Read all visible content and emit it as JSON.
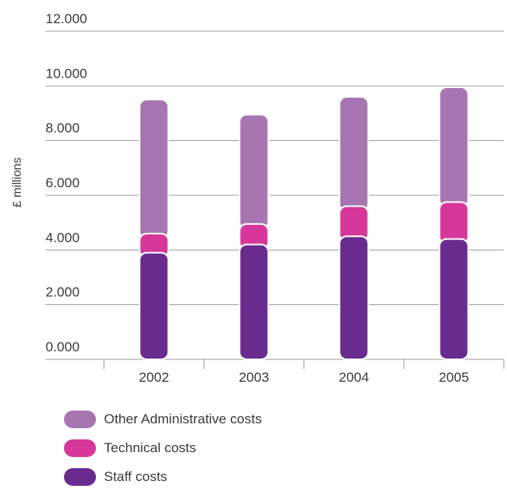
{
  "chart_data": {
    "type": "bar",
    "stacked": true,
    "categories": [
      "2002",
      "2003",
      "2004",
      "2005"
    ],
    "ylabel": "£ millions",
    "ylim": [
      0,
      12
    ],
    "yticks": [
      "0.000",
      "2.000",
      "4.000",
      "6.000",
      "8.000",
      "10.000",
      "12.000"
    ],
    "grid": true,
    "legend_position": "bottom-left",
    "series": [
      {
        "name": "Staff costs",
        "color": "#6a2b8f",
        "values": [
          3.9,
          4.2,
          4.5,
          4.4
        ]
      },
      {
        "name": "Technical costs",
        "color": "#d7379a",
        "values": [
          0.7,
          0.75,
          1.1,
          1.35
        ]
      },
      {
        "name": "Other Administrative costs",
        "color": "#a775b2",
        "values": [
          4.9,
          4.0,
          4.0,
          4.2
        ]
      }
    ]
  }
}
